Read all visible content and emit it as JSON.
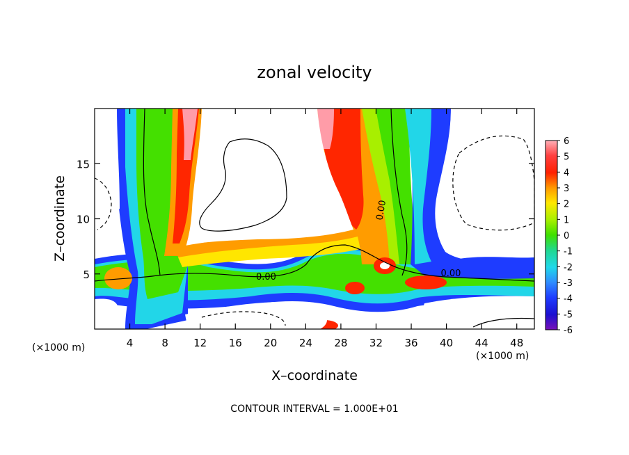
{
  "chart_data": {
    "type": "heatmap",
    "title": "zonal velocity",
    "xlabel": "X–coordinate",
    "ylabel": "Z–coordinate",
    "x_unit_left": "(×1000 m)",
    "x_unit_right": "(×1000 m)",
    "xlim": [
      0,
      50
    ],
    "ylim": [
      0,
      20
    ],
    "x_ticks": [
      4,
      8,
      12,
      16,
      20,
      24,
      28,
      32,
      36,
      40,
      44,
      48
    ],
    "y_ticks": [
      5,
      10,
      15
    ],
    "colorbar_ticks": [
      6,
      5,
      4,
      3,
      2,
      1,
      0,
      -1,
      -2,
      -3,
      -4,
      -5,
      -6
    ],
    "colorbar_range": [
      -6,
      6
    ],
    "contour_labels": [
      {
        "text": "0.00",
        "x": 19.5,
        "z": 4.8
      },
      {
        "text": "0.00",
        "x": 40.5,
        "z": 5.1
      },
      {
        "text": "0.00",
        "x": 32.5,
        "z": 10.8
      }
    ],
    "footer": "CONTOUR INTERVAL = 1.000E+01",
    "colors": {
      "v6": "#ff9ca8",
      "v5": "#ff3838",
      "v4": "#ff2600",
      "v3": "#ff9c00",
      "v2": "#ffe600",
      "v1": "#a8ef00",
      "v0": "#44e000",
      "vm1": "#22d890",
      "vm2": "#22d6e8",
      "vm3": "#2f8cff",
      "vm4": "#1e3cff",
      "vm5": "#1c12d2",
      "vm6": "#7a10b8"
    }
  }
}
